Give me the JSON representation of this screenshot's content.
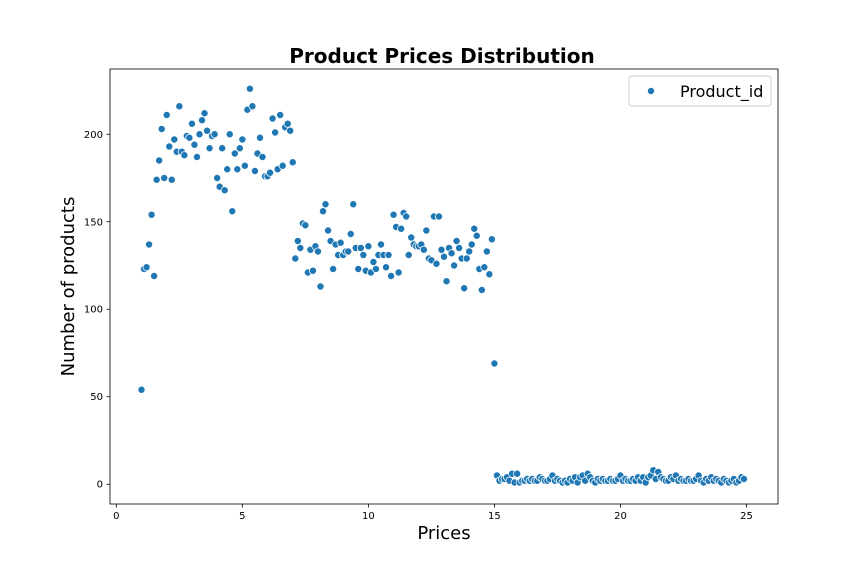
{
  "chart_data": {
    "type": "scatter",
    "title": "Product Prices Distribution",
    "xlabel": "Prices",
    "ylabel": "Number of products",
    "xlim": [
      -0.25,
      26.25
    ],
    "ylim": [
      -11.3,
      237.3
    ],
    "xticks": [
      0,
      5,
      10,
      15,
      20,
      25
    ],
    "yticks": [
      0,
      50,
      100,
      150,
      200
    ],
    "grid": false,
    "legend": {
      "placement": "top-right"
    },
    "series": [
      {
        "name": "Product_id",
        "color": "#1f77b4",
        "points": [
          [
            1.0,
            54
          ],
          [
            1.1,
            123
          ],
          [
            1.2,
            124
          ],
          [
            1.3,
            137
          ],
          [
            1.4,
            154
          ],
          [
            1.5,
            119
          ],
          [
            1.6,
            174
          ],
          [
            1.7,
            185
          ],
          [
            1.8,
            203
          ],
          [
            1.9,
            175
          ],
          [
            2.0,
            211
          ],
          [
            2.1,
            193
          ],
          [
            2.2,
            174
          ],
          [
            2.3,
            197
          ],
          [
            2.4,
            190
          ],
          [
            2.5,
            216
          ],
          [
            2.6,
            190
          ],
          [
            2.7,
            188
          ],
          [
            2.8,
            199
          ],
          [
            2.9,
            198
          ],
          [
            3.0,
            206
          ],
          [
            3.1,
            194
          ],
          [
            3.2,
            187
          ],
          [
            3.3,
            200
          ],
          [
            3.4,
            208
          ],
          [
            3.5,
            212
          ],
          [
            3.6,
            202
          ],
          [
            3.7,
            192
          ],
          [
            3.8,
            199
          ],
          [
            3.9,
            200
          ],
          [
            4.0,
            175
          ],
          [
            4.1,
            170
          ],
          [
            4.2,
            192
          ],
          [
            4.3,
            168
          ],
          [
            4.4,
            180
          ],
          [
            4.5,
            200
          ],
          [
            4.6,
            156
          ],
          [
            4.7,
            189
          ],
          [
            4.8,
            180
          ],
          [
            4.9,
            192
          ],
          [
            5.0,
            197
          ],
          [
            5.1,
            182
          ],
          [
            5.2,
            214
          ],
          [
            5.3,
            226
          ],
          [
            5.4,
            216
          ],
          [
            5.5,
            179
          ],
          [
            5.6,
            189
          ],
          [
            5.7,
            198
          ],
          [
            5.8,
            187
          ],
          [
            5.9,
            176
          ],
          [
            6.0,
            176
          ],
          [
            6.1,
            178
          ],
          [
            6.2,
            209
          ],
          [
            6.3,
            201
          ],
          [
            6.4,
            180
          ],
          [
            6.5,
            211
          ],
          [
            6.6,
            182
          ],
          [
            6.7,
            204
          ],
          [
            6.8,
            206
          ],
          [
            6.9,
            202
          ],
          [
            7.0,
            184
          ],
          [
            7.1,
            129
          ],
          [
            7.2,
            139
          ],
          [
            7.3,
            135
          ],
          [
            7.4,
            149
          ],
          [
            7.5,
            148
          ],
          [
            7.6,
            121
          ],
          [
            7.7,
            134
          ],
          [
            7.8,
            122
          ],
          [
            7.9,
            136
          ],
          [
            8.0,
            133
          ],
          [
            8.1,
            113
          ],
          [
            8.2,
            156
          ],
          [
            8.3,
            160
          ],
          [
            8.4,
            145
          ],
          [
            8.5,
            139
          ],
          [
            8.6,
            123
          ],
          [
            8.7,
            137
          ],
          [
            8.8,
            131
          ],
          [
            8.9,
            138
          ],
          [
            9.0,
            131
          ],
          [
            9.1,
            133
          ],
          [
            9.2,
            133
          ],
          [
            9.3,
            143
          ],
          [
            9.4,
            160
          ],
          [
            9.5,
            135
          ],
          [
            9.6,
            123
          ],
          [
            9.7,
            135
          ],
          [
            9.8,
            131
          ],
          [
            9.9,
            122
          ],
          [
            10.0,
            136
          ],
          [
            10.1,
            121
          ],
          [
            10.2,
            127
          ],
          [
            10.3,
            123
          ],
          [
            10.4,
            131
          ],
          [
            10.5,
            137
          ],
          [
            10.6,
            131
          ],
          [
            10.7,
            124
          ],
          [
            10.8,
            131
          ],
          [
            10.9,
            119
          ],
          [
            11.0,
            154
          ],
          [
            11.1,
            147
          ],
          [
            11.2,
            121
          ],
          [
            11.3,
            146
          ],
          [
            11.4,
            155
          ],
          [
            11.5,
            153
          ],
          [
            11.6,
            131
          ],
          [
            11.7,
            141
          ],
          [
            11.8,
            137
          ],
          [
            11.9,
            136
          ],
          [
            12.0,
            136
          ],
          [
            12.1,
            137
          ],
          [
            12.2,
            134
          ],
          [
            12.3,
            145
          ],
          [
            12.4,
            129
          ],
          [
            12.5,
            128
          ],
          [
            12.6,
            153
          ],
          [
            12.7,
            126
          ],
          [
            12.8,
            153
          ],
          [
            12.9,
            134
          ],
          [
            13.0,
            130
          ],
          [
            13.1,
            116
          ],
          [
            13.2,
            135
          ],
          [
            13.3,
            132
          ],
          [
            13.4,
            125
          ],
          [
            13.5,
            139
          ],
          [
            13.6,
            135
          ],
          [
            13.7,
            129
          ],
          [
            13.8,
            112
          ],
          [
            13.9,
            129
          ],
          [
            14.0,
            133
          ],
          [
            14.1,
            137
          ],
          [
            14.2,
            146
          ],
          [
            14.3,
            142
          ],
          [
            14.4,
            123
          ],
          [
            14.5,
            111
          ],
          [
            14.6,
            124
          ],
          [
            14.7,
            133
          ],
          [
            14.8,
            120
          ],
          [
            14.9,
            140
          ],
          [
            15.0,
            69
          ],
          [
            15.1,
            5
          ],
          [
            15.2,
            2
          ],
          [
            15.3,
            3
          ],
          [
            15.4,
            3
          ],
          [
            15.5,
            4
          ],
          [
            15.6,
            2
          ],
          [
            15.7,
            6
          ],
          [
            15.8,
            1
          ],
          [
            15.9,
            6
          ],
          [
            16.0,
            1
          ],
          [
            16.1,
            2
          ],
          [
            16.2,
            2
          ],
          [
            16.3,
            3
          ],
          [
            16.4,
            2
          ],
          [
            16.5,
            3
          ],
          [
            16.6,
            2
          ],
          [
            16.7,
            2
          ],
          [
            16.8,
            4
          ],
          [
            16.9,
            3
          ],
          [
            17.0,
            2
          ],
          [
            17.1,
            2
          ],
          [
            17.2,
            3
          ],
          [
            17.3,
            5
          ],
          [
            17.4,
            2
          ],
          [
            17.5,
            3
          ],
          [
            17.6,
            2
          ],
          [
            17.7,
            1
          ],
          [
            17.8,
            2
          ],
          [
            17.9,
            1
          ],
          [
            18.0,
            3
          ],
          [
            18.1,
            2
          ],
          [
            18.2,
            4
          ],
          [
            18.3,
            1
          ],
          [
            18.4,
            4
          ],
          [
            18.5,
            5
          ],
          [
            18.6,
            2
          ],
          [
            18.7,
            6
          ],
          [
            18.8,
            4
          ],
          [
            18.9,
            2
          ],
          [
            19.0,
            1
          ],
          [
            19.1,
            3
          ],
          [
            19.2,
            2
          ],
          [
            19.3,
            3
          ],
          [
            19.4,
            2
          ],
          [
            19.5,
            2
          ],
          [
            19.6,
            3
          ],
          [
            19.7,
            2
          ],
          [
            19.8,
            2
          ],
          [
            19.9,
            3
          ],
          [
            20.0,
            5
          ],
          [
            20.1,
            2
          ],
          [
            20.2,
            3
          ],
          [
            20.3,
            2
          ],
          [
            20.4,
            2
          ],
          [
            20.5,
            3
          ],
          [
            20.6,
            2
          ],
          [
            20.7,
            4
          ],
          [
            20.8,
            2
          ],
          [
            20.9,
            4
          ],
          [
            21.0,
            1
          ],
          [
            21.1,
            4
          ],
          [
            21.2,
            5
          ],
          [
            21.3,
            8
          ],
          [
            21.4,
            3
          ],
          [
            21.5,
            7
          ],
          [
            21.6,
            4
          ],
          [
            21.7,
            3
          ],
          [
            21.8,
            2
          ],
          [
            21.9,
            2
          ],
          [
            22.0,
            4
          ],
          [
            22.1,
            3
          ],
          [
            22.2,
            5
          ],
          [
            22.3,
            2
          ],
          [
            22.4,
            3
          ],
          [
            22.5,
            2
          ],
          [
            22.6,
            2
          ],
          [
            22.7,
            3
          ],
          [
            22.8,
            2
          ],
          [
            22.9,
            2
          ],
          [
            23.0,
            3
          ],
          [
            23.1,
            5
          ],
          [
            23.2,
            2
          ],
          [
            23.3,
            1
          ],
          [
            23.4,
            3
          ],
          [
            23.5,
            2
          ],
          [
            23.6,
            4
          ],
          [
            23.7,
            2
          ],
          [
            23.8,
            3
          ],
          [
            23.9,
            2
          ],
          [
            24.0,
            1
          ],
          [
            24.1,
            3
          ],
          [
            24.2,
            2
          ],
          [
            24.3,
            1
          ],
          [
            24.4,
            2
          ],
          [
            24.5,
            3
          ],
          [
            24.6,
            1
          ],
          [
            24.7,
            2
          ],
          [
            24.8,
            4
          ],
          [
            24.9,
            3
          ]
        ]
      }
    ]
  }
}
